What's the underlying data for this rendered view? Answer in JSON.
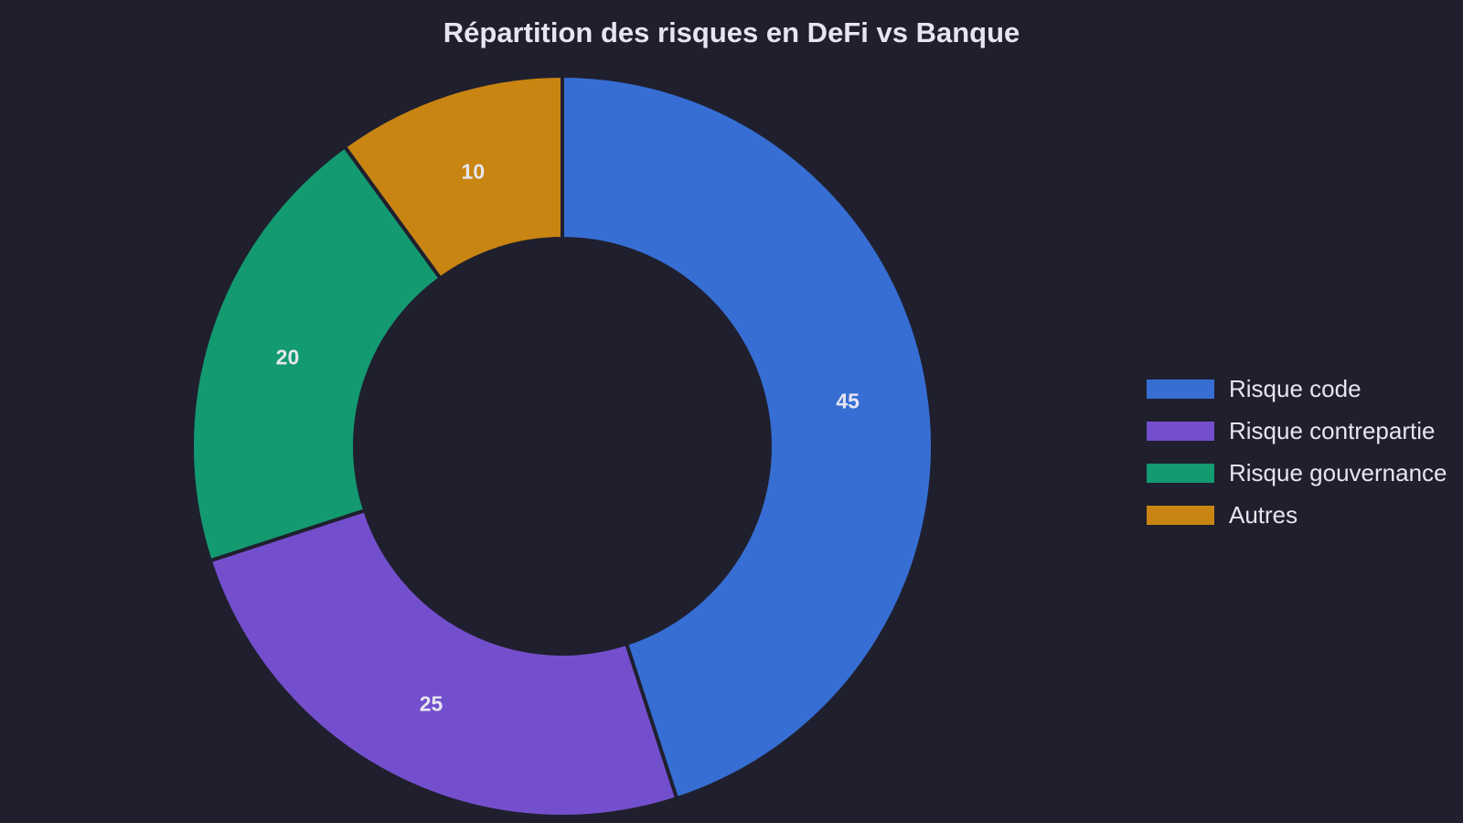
{
  "chart_data": {
    "type": "pie",
    "variant": "donut",
    "title": "Répartition des risques en DeFi vs Banque",
    "categories": [
      "Risque code",
      "Risque contrepartie",
      "Risque gouvernance",
      "Autres"
    ],
    "values": [
      45,
      25,
      20,
      10
    ],
    "colors": [
      "#366ed3",
      "#744fcd",
      "#139a70",
      "#c98512"
    ],
    "background": "#1f1f2e",
    "text_color": "#e6e6f0",
    "legend_position": "right"
  }
}
